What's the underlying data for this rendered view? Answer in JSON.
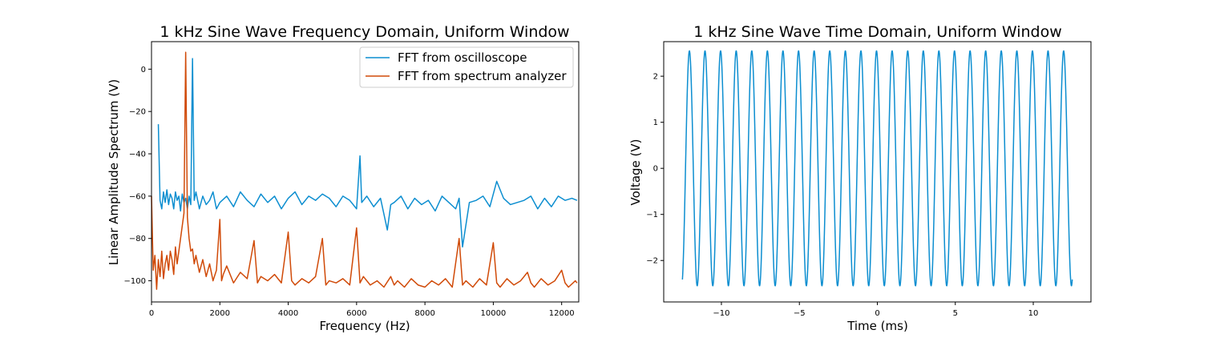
{
  "colors": {
    "oscilloscope": "#0C8ED0",
    "analyzer": "#D04A08"
  },
  "chart_data": [
    {
      "type": "line",
      "title": "1 kHz Sine Wave Frequency Domain, Uniform Window",
      "xlabel": "Frequency (Hz)",
      "ylabel": "Linear Amplitude Spectrum (V)",
      "xlim": [
        0,
        12500
      ],
      "ylim": [
        -110,
        13
      ],
      "xticks": [
        0,
        2000,
        4000,
        6000,
        8000,
        10000,
        12000
      ],
      "yticks": [
        0,
        -20,
        -40,
        -60,
        -80,
        -100
      ],
      "grid": false,
      "legend": "top-right",
      "series": [
        {
          "name": "FFT from oscilloscope",
          "color": "#0C8ED0",
          "x": [
            200,
            250,
            300,
            350,
            400,
            450,
            500,
            550,
            600,
            650,
            700,
            750,
            800,
            850,
            900,
            950,
            1000,
            1050,
            1100,
            1150,
            1200,
            1250,
            1300,
            1400,
            1500,
            1600,
            1700,
            1800,
            1900,
            2000,
            2200,
            2400,
            2600,
            2800,
            3000,
            3200,
            3400,
            3600,
            3800,
            4000,
            4200,
            4400,
            4600,
            4800,
            5000,
            5200,
            5400,
            5600,
            5800,
            6000,
            6100,
            6150,
            6200,
            6300,
            6500,
            6700,
            6900,
            7000,
            7100,
            7300,
            7500,
            7700,
            7900,
            8100,
            8300,
            8500,
            8700,
            8900,
            9000,
            9100,
            9300,
            9500,
            9700,
            9900,
            10100,
            10300,
            10500,
            10700,
            10900,
            11100,
            11300,
            11500,
            11700,
            11900,
            12100,
            12300,
            12450
          ],
          "y": [
            -26,
            -62,
            -66,
            -58,
            -63,
            -57,
            -64,
            -59,
            -61,
            -66,
            -58,
            -62,
            -60,
            -67,
            -59,
            -63,
            -61,
            -66,
            -60,
            -64,
            5,
            -62,
            -58,
            -66,
            -60,
            -64,
            -62,
            -58,
            -66,
            -63,
            -60,
            -65,
            -58,
            -62,
            -65,
            -59,
            -63,
            -60,
            -66,
            -61,
            -58,
            -64,
            -60,
            -62,
            -59,
            -61,
            -65,
            -60,
            -62,
            -66,
            -41,
            -63,
            -62,
            -60,
            -65,
            -61,
            -76,
            -64,
            -63,
            -60,
            -66,
            -61,
            -64,
            -62,
            -67,
            -60,
            -63,
            -66,
            -61,
            -84,
            -63,
            -62,
            -60,
            -65,
            -53,
            -61,
            -64,
            -63,
            -62,
            -60,
            -66,
            -61,
            -65,
            -60,
            -62,
            -61,
            -62
          ]
        },
        {
          "name": "FFT from spectrum analyzer",
          "color": "#D04A08",
          "x": [
            0,
            50,
            100,
            150,
            200,
            250,
            300,
            350,
            400,
            450,
            500,
            550,
            600,
            650,
            700,
            750,
            800,
            850,
            900,
            950,
            1000,
            1050,
            1100,
            1150,
            1200,
            1250,
            1300,
            1400,
            1500,
            1600,
            1700,
            1800,
            1900,
            2000,
            2050,
            2100,
            2200,
            2400,
            2600,
            2800,
            3000,
            3100,
            3200,
            3400,
            3600,
            3800,
            4000,
            4100,
            4200,
            4400,
            4600,
            4800,
            5000,
            5100,
            5200,
            5400,
            5600,
            5800,
            6000,
            6100,
            6200,
            6400,
            6600,
            6800,
            7000,
            7100,
            7200,
            7400,
            7600,
            7800,
            8000,
            8200,
            8400,
            8600,
            8800,
            9000,
            9100,
            9200,
            9400,
            9600,
            9800,
            10000,
            10100,
            10200,
            10400,
            10600,
            10800,
            11000,
            11100,
            11200,
            11400,
            11600,
            11800,
            12000,
            12100,
            12200,
            12400,
            12450
          ],
          "y": [
            -60,
            -95,
            -88,
            -104,
            -90,
            -98,
            -86,
            -99,
            -92,
            -88,
            -95,
            -86,
            -90,
            -97,
            -84,
            -92,
            -86,
            -80,
            -74,
            -68,
            8,
            -70,
            -80,
            -86,
            -85,
            -92,
            -88,
            -96,
            -90,
            -98,
            -92,
            -100,
            -95,
            -71,
            -100,
            -97,
            -93,
            -101,
            -96,
            -99,
            -81,
            -101,
            -98,
            -100,
            -97,
            -101,
            -77,
            -100,
            -102,
            -99,
            -101,
            -98,
            -80,
            -102,
            -100,
            -101,
            -99,
            -102,
            -75,
            -101,
            -98,
            -102,
            -100,
            -103,
            -98,
            -102,
            -100,
            -103,
            -99,
            -102,
            -103,
            -100,
            -102,
            -99,
            -103,
            -80,
            -102,
            -100,
            -103,
            -99,
            -102,
            -82,
            -101,
            -103,
            -99,
            -102,
            -100,
            -96,
            -101,
            -103,
            -99,
            -102,
            -100,
            -95,
            -101,
            -103,
            -100,
            -101
          ]
        }
      ]
    },
    {
      "type": "line",
      "title": "1 kHz Sine Wave Time Domain, Uniform Window",
      "xlabel": "Time (ms)",
      "ylabel": "Voltage (V)",
      "xlim": [
        -13.7,
        13.7
      ],
      "ylim": [
        -2.9,
        2.75
      ],
      "xticks": [
        -10,
        -5,
        0,
        5,
        10
      ],
      "yticks": [
        2,
        1,
        0,
        -1,
        -2
      ],
      "grid": false,
      "series": [
        {
          "color": "#0C8ED0",
          "amplitude": 2.55,
          "frequency_khz": 1,
          "t_start": -12.5,
          "t_end": 12.5
        }
      ]
    }
  ]
}
